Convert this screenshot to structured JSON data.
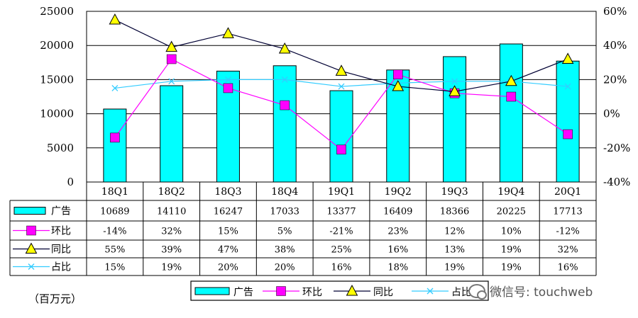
{
  "chart_data": {
    "type": "bar",
    "categories": [
      "18Q1",
      "18Q2",
      "18Q3",
      "18Q4",
      "19Q1",
      "19Q2",
      "19Q3",
      "19Q4",
      "20Q1"
    ],
    "left_axis": {
      "ylim": [
        0,
        25000
      ],
      "ticks": [
        "0",
        "5000",
        "10000",
        "15000",
        "20000",
        "25000"
      ]
    },
    "right_axis": {
      "ylim": [
        -40,
        60
      ],
      "ticks": [
        "-40%",
        "-20%",
        "0%",
        "20%",
        "40%",
        "60%"
      ]
    },
    "series": [
      {
        "name": "广告",
        "kind": "bar",
        "axis": "left",
        "color": "#00ffff",
        "values": [
          10689,
          14110,
          16247,
          17033,
          13377,
          16409,
          18366,
          20225,
          17713
        ],
        "labels": [
          "10689",
          "14110",
          "16247",
          "17033",
          "13377",
          "16409",
          "18366",
          "20225",
          "17713"
        ]
      },
      {
        "name": "环比",
        "kind": "line",
        "axis": "right",
        "color": "#ff00ff",
        "marker": "square",
        "values": [
          -14,
          32,
          15,
          5,
          -21,
          23,
          12,
          10,
          -12
        ],
        "labels": [
          "-14%",
          "32%",
          "15%",
          "5%",
          "-21%",
          "23%",
          "12%",
          "10%",
          "-12%"
        ]
      },
      {
        "name": "同比",
        "kind": "line",
        "axis": "right",
        "color": "#000033",
        "marker": "triangle",
        "values": [
          55,
          39,
          47,
          38,
          25,
          16,
          13,
          19,
          32
        ],
        "labels": [
          "55%",
          "39%",
          "47%",
          "38%",
          "25%",
          "16%",
          "13%",
          "19%",
          "32%"
        ]
      },
      {
        "name": "占比",
        "kind": "line",
        "axis": "right",
        "color": "#33ccff",
        "marker": "x",
        "values": [
          15,
          19,
          20,
          20,
          16,
          18,
          19,
          19,
          16
        ],
        "labels": [
          "15%",
          "19%",
          "20%",
          "20%",
          "16%",
          "18%",
          "19%",
          "19%",
          "16%"
        ]
      }
    ],
    "unit_label": "（百万元）",
    "legend_position": "bottom"
  },
  "watermark": "微信号: touchweb"
}
